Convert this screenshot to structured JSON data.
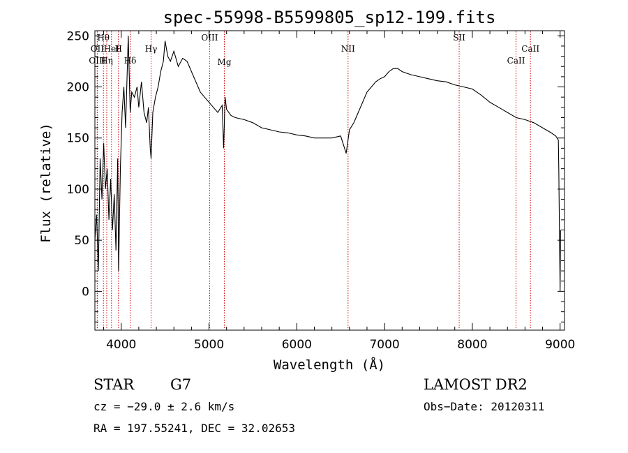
{
  "chart_data": {
    "type": "line",
    "title": "spec-55998-B5599805_sp12-199.fits",
    "xlabel": "Wavelength (Å)",
    "ylabel": "Flux (relative)",
    "xlim": [
      3700,
      9050
    ],
    "ylim": [
      -38,
      255
    ],
    "xticks": [
      4000,
      5000,
      6000,
      7000,
      8000,
      9000
    ],
    "yticks": [
      0,
      50,
      100,
      150,
      200,
      250
    ],
    "grid": false,
    "series": [
      {
        "color": "#000000",
        "x": [
          3700,
          3720,
          3740,
          3760,
          3780,
          3800,
          3820,
          3840,
          3860,
          3880,
          3900,
          3920,
          3940,
          3960,
          3970,
          3990,
          4010,
          4030,
          4050,
          4080,
          4102,
          4120,
          4150,
          4180,
          4200,
          4230,
          4260,
          4290,
          4310,
          4330,
          4340,
          4360,
          4390,
          4420,
          4450,
          4480,
          4500,
          4530,
          4560,
          4600,
          4650,
          4700,
          4750,
          4800,
          4850,
          4900,
          4950,
          5000,
          5050,
          5100,
          5150,
          5167,
          5183,
          5200,
          5250,
          5300,
          5400,
          5500,
          5600,
          5700,
          5800,
          5900,
          6000,
          6100,
          6200,
          6300,
          6400,
          6500,
          6563,
          6600,
          6650,
          6700,
          6750,
          6800,
          6850,
          6900,
          6950,
          7000,
          7050,
          7100,
          7150,
          7200,
          7300,
          7400,
          7500,
          7600,
          7700,
          7800,
          7900,
          8000,
          8100,
          8200,
          8300,
          8400,
          8500,
          8600,
          8700,
          8800,
          8900,
          8950,
          8980,
          8985,
          9000,
          9005
        ],
        "y": [
          50,
          75,
          20,
          130,
          90,
          145,
          100,
          120,
          70,
          110,
          60,
          95,
          40,
          130,
          20,
          120,
          175,
          200,
          160,
          250,
          175,
          195,
          190,
          200,
          180,
          205,
          175,
          165,
          180,
          140,
          130,
          175,
          190,
          200,
          215,
          225,
          245,
          230,
          225,
          235,
          220,
          228,
          225,
          215,
          205,
          195,
          190,
          185,
          180,
          175,
          182,
          140,
          190,
          178,
          172,
          170,
          168,
          165,
          160,
          158,
          156,
          155,
          153,
          152,
          150,
          150,
          150,
          152,
          135,
          158,
          165,
          175,
          185,
          195,
          200,
          205,
          208,
          210,
          215,
          218,
          218,
          215,
          212,
          210,
          208,
          206,
          205,
          202,
          200,
          198,
          192,
          185,
          180,
          175,
          170,
          168,
          165,
          160,
          155,
          152,
          148,
          120,
          0,
          60
        ]
      }
    ],
    "lines": [
      {
        "label": "Hθ",
        "x": 3797
      },
      {
        "label": "OII",
        "x": 3727
      },
      {
        "label": "OIII",
        "x": 3727
      },
      {
        "label": "H",
        "x": 3968
      },
      {
        "label": "HeI",
        "x": 3889
      },
      {
        "label": "Hη",
        "x": 3835
      },
      {
        "label": "Hδ",
        "x": 4102
      },
      {
        "label": "Hγ",
        "x": 4340
      },
      {
        "label": "OIII",
        "x": 5007
      },
      {
        "label": "Mg",
        "x": 5175
      },
      {
        "label": "NII",
        "x": 6584
      },
      {
        "label": "SII",
        "x": 7850
      },
      {
        "label": "CaII",
        "x": 8498
      },
      {
        "label": "CaII",
        "x": 8662
      }
    ]
  },
  "info": {
    "class": "STAR",
    "subclass": "G7",
    "survey": "LAMOST DR2",
    "cz": "cz = −29.0 ± 2.6 km/s",
    "obs_date": "Obs−Date: 20120311",
    "radec": "RA = 197.55241, DEC =  32.02653"
  },
  "colors": {
    "line_marker": "#cc0000",
    "spectrum": "#000000",
    "axes": "#000000"
  }
}
